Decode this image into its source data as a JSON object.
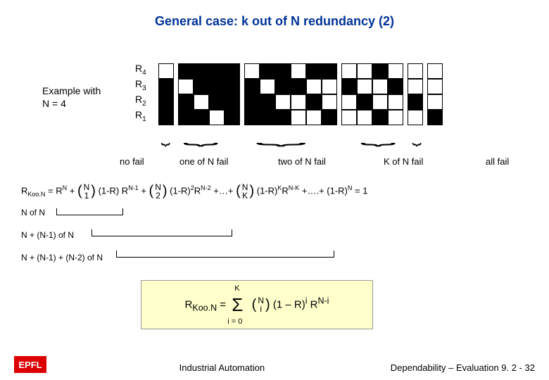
{
  "title": "General case: k out of N redundancy (2)",
  "example_label_1": "Example with",
  "example_label_2": "N = 4",
  "row_labels": [
    "R",
    "R",
    "R",
    "R"
  ],
  "row_subs": [
    "4",
    "3",
    "2",
    "1"
  ],
  "grid": {
    "rows": 4,
    "pattern": [
      [
        0,
        1,
        1,
        1,
        1,
        0,
        1,
        1,
        0,
        1,
        1,
        0,
        0,
        1,
        0,
        0,
        0
      ],
      [
        1,
        0,
        1,
        1,
        1,
        1,
        0,
        1,
        1,
        0,
        0,
        1,
        0,
        0,
        1,
        0,
        0
      ],
      [
        1,
        1,
        0,
        1,
        1,
        1,
        1,
        0,
        0,
        1,
        0,
        0,
        1,
        0,
        0,
        1,
        0
      ],
      [
        1,
        1,
        1,
        0,
        1,
        1,
        1,
        1,
        0,
        0,
        1,
        0,
        0,
        1,
        0,
        0,
        1
      ]
    ],
    "cell_size": 22,
    "colors": {
      "on": "#000000",
      "off": "#ffffff",
      "border": "#000000"
    }
  },
  "group_labels": {
    "no_fail": "no fail",
    "one_fail": "one of N fail",
    "two_fail": "two of N fail",
    "k_fail": "K of N fail",
    "all_fail": "all fail"
  },
  "formula": {
    "lhs": "R",
    "lhs_sub": "Koo.N",
    "eq": " = R",
    "rn_sup": "N",
    "plus": " + ",
    "n_top": "N",
    "binom1_bot": "1",
    "term1": " (1-R) R",
    "term1_sup": "N-1",
    "binom2_bot": "2",
    "term2": " (1-R)",
    "term2_sup1": "2",
    "term2_r": "R",
    "term2_sup2": "N-2",
    "dots1": " +…+ ",
    "binomk_bot": "K",
    "termk": " (1-R)",
    "termk_sup1": "K",
    "termk_r": "R",
    "termk_sup2": "N-K",
    "dots2": " +….+ (1-R)",
    "last_sup": "N",
    "eq1": " = 1"
  },
  "sum_lines": {
    "l1": "N of N",
    "l2": "N + (N-1) of N",
    "l3": "N + (N-1) + (N-2) of N"
  },
  "final": {
    "lhs": "R",
    "lhs_sub": "Koo.N",
    "eq": " = ",
    "sigma_top": "K",
    "sigma_bot": "i = 0",
    "binom_top": "N",
    "binom_bot": "i",
    "term": " (1 – R)",
    "term_sup1": "i",
    "r": "  R",
    "term_sup2": "N-i"
  },
  "footer": {
    "logo": "EPFL",
    "center": "Industrial Automation",
    "right": "Dependability – Evaluation 9. 2 - 32"
  },
  "colors": {
    "title": "#003399",
    "formula_bg": "#ffffcc",
    "logo_bg": "#dd0000"
  }
}
